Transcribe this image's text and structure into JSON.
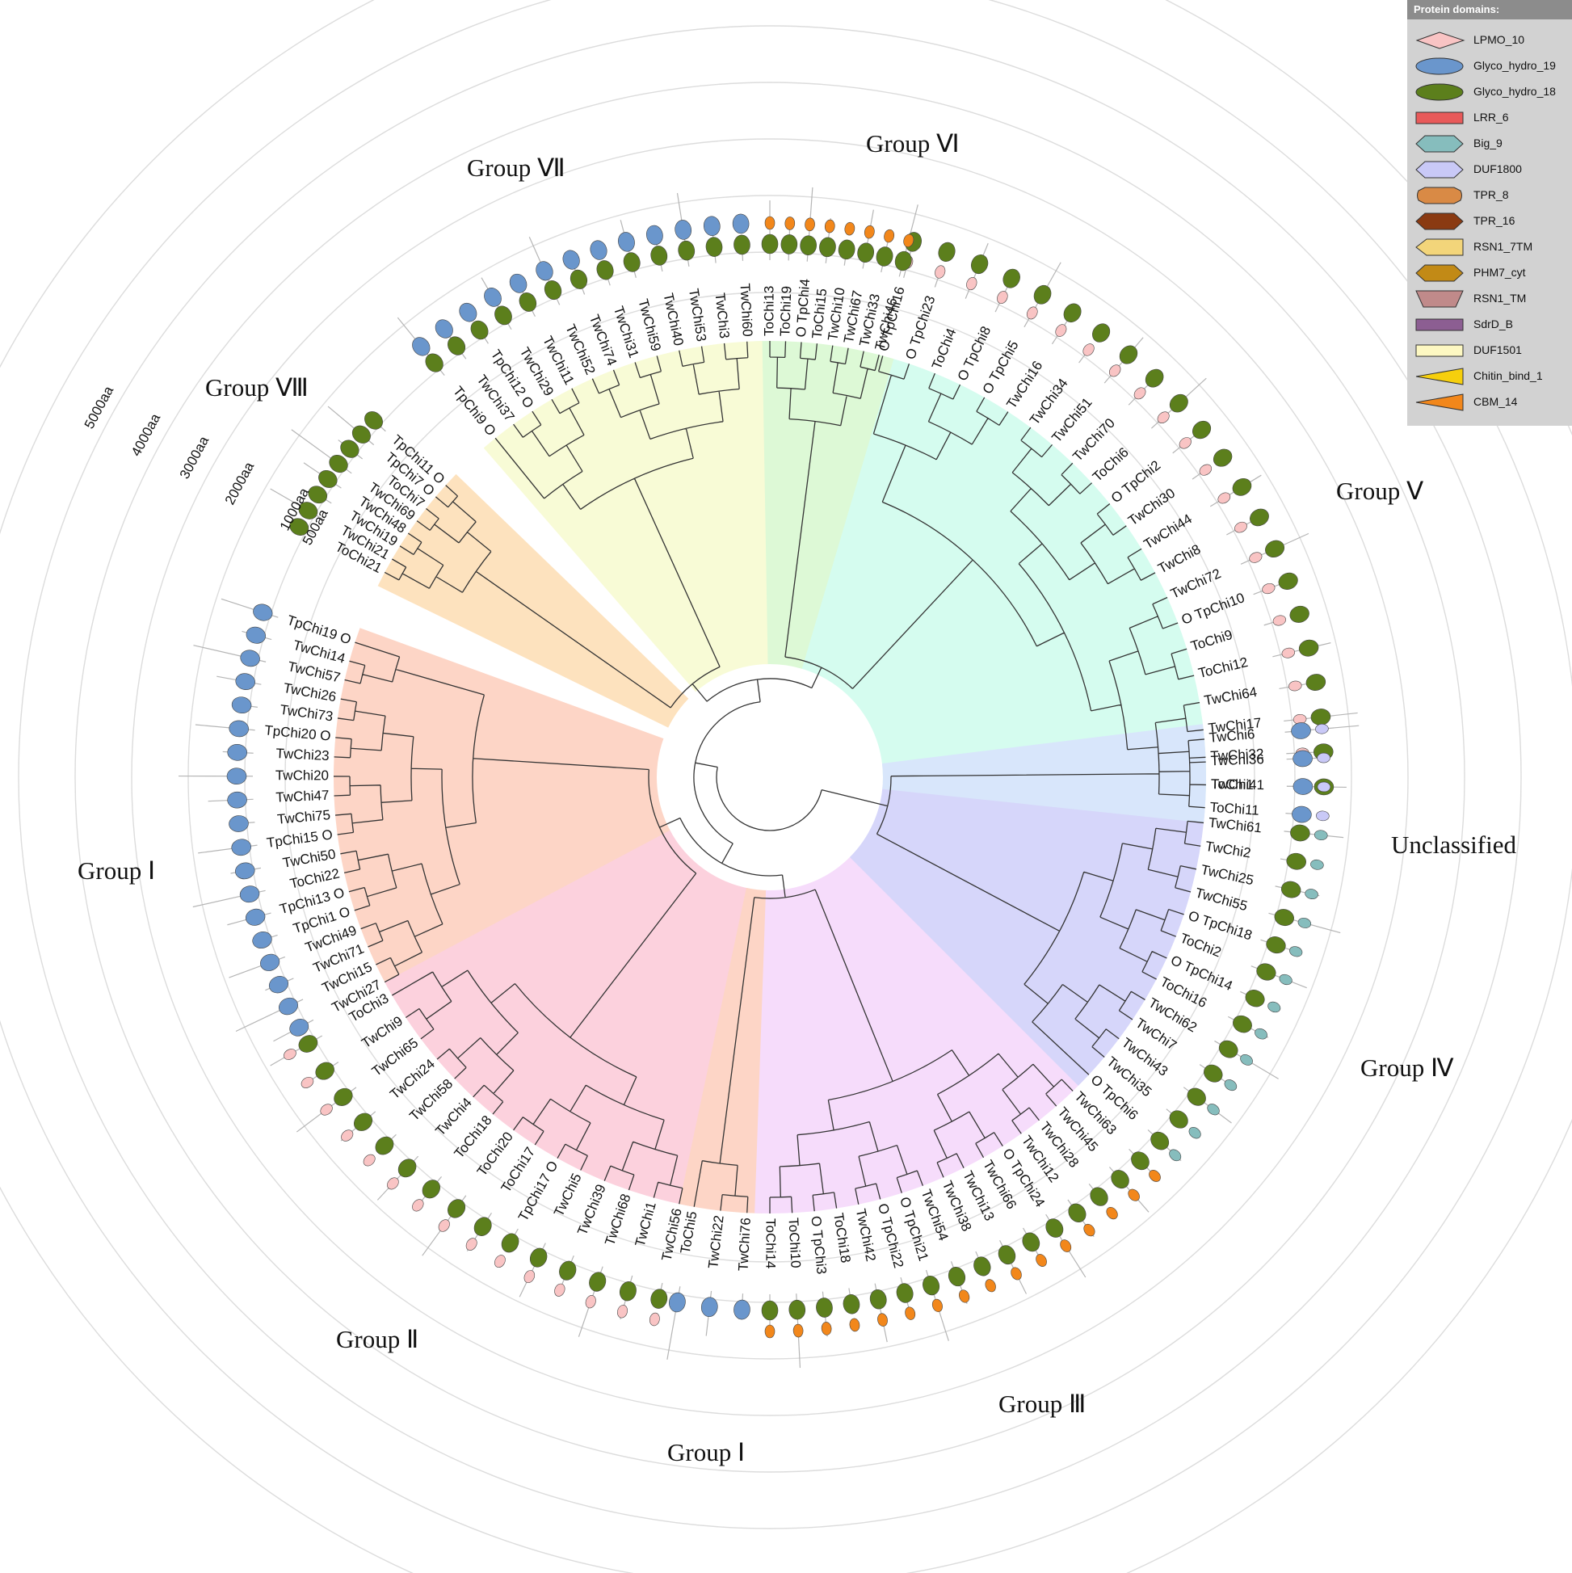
{
  "scale_labels": [
    "5000aa",
    "4000aa",
    "3000aa",
    "2000aa",
    "1000aa",
    "500aa"
  ],
  "groups": [
    {
      "id": "VII",
      "label": "Group Ⅶ",
      "color": "#f8fbd6"
    },
    {
      "id": "VI",
      "label": "Group Ⅵ",
      "color": "#ddf9d6"
    },
    {
      "id": "V",
      "label": "Group Ⅴ",
      "color": "#d5fcef"
    },
    {
      "id": "VIII",
      "label": "Group Ⅷ",
      "color": "#fde2be"
    },
    {
      "id": "I",
      "label": "Group Ⅰ",
      "color": "#fdd5c6"
    },
    {
      "id": "II",
      "label": "Group Ⅱ",
      "color": "#fcd1dd"
    },
    {
      "id": "Ib",
      "label": "Group Ⅰ",
      "color": "#fdd5c6"
    },
    {
      "id": "III",
      "label": "Group Ⅲ",
      "color": "#f6dcfb"
    },
    {
      "id": "IV",
      "label": "Group Ⅳ",
      "color": "#d6d6fa"
    },
    {
      "id": "U",
      "label": "Unclassified",
      "color": "#d8e6fb"
    }
  ],
  "leaves": [
    {
      "label": "TwChi41",
      "group": "V"
    },
    {
      "label": "TwChi32",
      "group": "V"
    },
    {
      "label": "TwChi17",
      "group": "V"
    },
    {
      "label": "TwChi64",
      "group": "V"
    },
    {
      "label": "ToChi12",
      "group": "V"
    },
    {
      "label": "ToChi9",
      "group": "V"
    },
    {
      "label": "O TpChi10",
      "group": "V"
    },
    {
      "label": "TwChi72",
      "group": "V"
    },
    {
      "label": "TwChi8",
      "group": "V"
    },
    {
      "label": "TwChi44",
      "group": "V"
    },
    {
      "label": "TwChi30",
      "group": "V"
    },
    {
      "label": "O TpChi2",
      "group": "V"
    },
    {
      "label": "ToChi6",
      "group": "V"
    },
    {
      "label": "TwChi70",
      "group": "V"
    },
    {
      "label": "TwChi51",
      "group": "V"
    },
    {
      "label": "TwChi34",
      "group": "V"
    },
    {
      "label": "TwChi16",
      "group": "V"
    },
    {
      "label": "O TpChi5",
      "group": "V"
    },
    {
      "label": "O TpChi8",
      "group": "V"
    },
    {
      "label": "ToChi4",
      "group": "V"
    },
    {
      "label": "O TpChi23",
      "group": "V"
    },
    {
      "label": "O TpChi16",
      "group": "V"
    },
    {
      "label": "TwChi46",
      "group": "VI"
    },
    {
      "label": "TwChi33",
      "group": "VI"
    },
    {
      "label": "TwChi67",
      "group": "VI"
    },
    {
      "label": "TwChi10",
      "group": "VI"
    },
    {
      "label": "ToChi15",
      "group": "VI"
    },
    {
      "label": "O TpChi4",
      "group": "VI"
    },
    {
      "label": "ToChi19",
      "group": "VI"
    },
    {
      "label": "ToChi13",
      "group": "VI"
    },
    {
      "label": "TwChi60",
      "group": "VII"
    },
    {
      "label": "TwChi3",
      "group": "VII"
    },
    {
      "label": "TwChi53",
      "group": "VII"
    },
    {
      "label": "TwChi40",
      "group": "VII"
    },
    {
      "label": "TwChi59",
      "group": "VII"
    },
    {
      "label": "TwChi31",
      "group": "VII"
    },
    {
      "label": "TwChi74",
      "group": "VII"
    },
    {
      "label": "TwChi52",
      "group": "VII"
    },
    {
      "label": "TwChi11",
      "group": "VII"
    },
    {
      "label": "TwChi29",
      "group": "VII"
    },
    {
      "label": "TpChi12 O",
      "group": "VII"
    },
    {
      "label": "TwChi37",
      "group": "VII"
    },
    {
      "label": "TpChi9 O",
      "group": "VII"
    },
    {
      "label": "ToChi21",
      "group": "VIII"
    },
    {
      "label": "TwChi21",
      "group": "VIII"
    },
    {
      "label": "TwChi19",
      "group": "VIII"
    },
    {
      "label": "TwChi48",
      "group": "VIII"
    },
    {
      "label": "TwChi69",
      "group": "VIII"
    },
    {
      "label": "ToChi7",
      "group": "VIII"
    },
    {
      "label": "TpChi7 O",
      "group": "VIII"
    },
    {
      "label": "TpChi11 O",
      "group": "VIII"
    },
    {
      "label": "TwChi27",
      "group": "I"
    },
    {
      "label": "TwChi15",
      "group": "I"
    },
    {
      "label": "TwChi71",
      "group": "I"
    },
    {
      "label": "TwChi49",
      "group": "I"
    },
    {
      "label": "TpChi1 O",
      "group": "I"
    },
    {
      "label": "TpChi13 O",
      "group": "I"
    },
    {
      "label": "ToChi22",
      "group": "I"
    },
    {
      "label": "TwChi50",
      "group": "I"
    },
    {
      "label": "TpChi15 O",
      "group": "I"
    },
    {
      "label": "TwChi75",
      "group": "I"
    },
    {
      "label": "TwChi47",
      "group": "I"
    },
    {
      "label": "TwChi20",
      "group": "I"
    },
    {
      "label": "TwChi23",
      "group": "I"
    },
    {
      "label": "TpChi20 O",
      "group": "I"
    },
    {
      "label": "TwChi73",
      "group": "I"
    },
    {
      "label": "TwChi26",
      "group": "I"
    },
    {
      "label": "TwChi57",
      "group": "I"
    },
    {
      "label": "TwChi14",
      "group": "I"
    },
    {
      "label": "TpChi19 O",
      "group": "I"
    },
    {
      "label": "TwChi56",
      "group": "II"
    },
    {
      "label": "TwChi1",
      "group": "II"
    },
    {
      "label": "TwChi68",
      "group": "II"
    },
    {
      "label": "TwChi39",
      "group": "II"
    },
    {
      "label": "TwChi5",
      "group": "II"
    },
    {
      "label": "TpChi17 O",
      "group": "II"
    },
    {
      "label": "ToChi17",
      "group": "II"
    },
    {
      "label": "ToChi20",
      "group": "II"
    },
    {
      "label": "ToChi18",
      "group": "II"
    },
    {
      "label": "TwChi4",
      "group": "II"
    },
    {
      "label": "TwChi58",
      "group": "II"
    },
    {
      "label": "TwChi24",
      "group": "II"
    },
    {
      "label": "TwChi65",
      "group": "II"
    },
    {
      "label": "TwChi9",
      "group": "II"
    },
    {
      "label": "ToChi3",
      "group": "II"
    },
    {
      "label": "TwChi76",
      "group": "Ib"
    },
    {
      "label": "TwChi22",
      "group": "Ib"
    },
    {
      "label": "ToChi5",
      "group": "Ib"
    },
    {
      "label": "TwChi63",
      "group": "III"
    },
    {
      "label": "TwChi45",
      "group": "III"
    },
    {
      "label": "TwChi28",
      "group": "III"
    },
    {
      "label": "TwChi12",
      "group": "III"
    },
    {
      "label": "O TpChi24",
      "group": "III"
    },
    {
      "label": "TwChi66",
      "group": "III"
    },
    {
      "label": "TwChi13",
      "group": "III"
    },
    {
      "label": "TwChi38",
      "group": "III"
    },
    {
      "label": "TwChi54",
      "group": "III"
    },
    {
      "label": "O TpChi21",
      "group": "III"
    },
    {
      "label": "O TpChi22",
      "group": "III"
    },
    {
      "label": "TwChi42",
      "group": "III"
    },
    {
      "label": "ToChi18",
      "group": "III"
    },
    {
      "label": "O TpChi3",
      "group": "III"
    },
    {
      "label": "ToChi10",
      "group": "III"
    },
    {
      "label": "ToChi14",
      "group": "III"
    },
    {
      "label": "TwChi61",
      "group": "IV"
    },
    {
      "label": "TwChi2",
      "group": "IV"
    },
    {
      "label": "TwChi25",
      "group": "IV"
    },
    {
      "label": "TwChi55",
      "group": "IV"
    },
    {
      "label": "O TpChi18",
      "group": "IV"
    },
    {
      "label": "ToChi2",
      "group": "IV"
    },
    {
      "label": "O TpChi14",
      "group": "IV"
    },
    {
      "label": "ToChi16",
      "group": "IV"
    },
    {
      "label": "TwChi62",
      "group": "IV"
    },
    {
      "label": "TwChi7",
      "group": "IV"
    },
    {
      "label": "TwChi43",
      "group": "IV"
    },
    {
      "label": "TwChi35",
      "group": "IV"
    },
    {
      "label": "O TpChi6",
      "group": "IV"
    },
    {
      "label": "TwChi6",
      "group": "U"
    },
    {
      "label": "TwChi36",
      "group": "U"
    },
    {
      "label": "ToChi1",
      "group": "U"
    },
    {
      "label": "ToChi11",
      "group": "U"
    }
  ],
  "legend": {
    "title": "Protein domains:",
    "items": [
      {
        "label": "LPMO_10",
        "shape": "diamond",
        "color": "#f9c4c4"
      },
      {
        "label": "Glyco_hydro_19",
        "shape": "ellipse",
        "color": "#6a96cc"
      },
      {
        "label": "Glyco_hydro_18",
        "shape": "ellipse",
        "color": "#5c7f1c"
      },
      {
        "label": "LRR_6",
        "shape": "rect",
        "color": "#e85a5a"
      },
      {
        "label": "Big_9",
        "shape": "hexagon",
        "color": "#86bdbd"
      },
      {
        "label": "DUF1800",
        "shape": "hexagon",
        "color": "#c9c9f7"
      },
      {
        "label": "TPR_8",
        "shape": "hexround",
        "color": "#d98a45"
      },
      {
        "label": "TPR_16",
        "shape": "hexagon",
        "color": "#8a3a12"
      },
      {
        "label": "RSN1_7TM",
        "shape": "pentagon",
        "color": "#f3d57a"
      },
      {
        "label": "PHM7_cyt",
        "shape": "hexagon",
        "color": "#c28a16"
      },
      {
        "label": "RSN1_TM",
        "shape": "trapezoid",
        "color": "#c08a8a"
      },
      {
        "label": "SdrD_B",
        "shape": "rect",
        "color": "#8c5e92"
      },
      {
        "label": "DUF1501",
        "shape": "rect",
        "color": "#fdf8c2"
      },
      {
        "label": "Chitin_bind_1",
        "shape": "triangle",
        "color": "#f6cf0d"
      },
      {
        "label": "CBM_14",
        "shape": "triangle",
        "color": "#f2871b"
      }
    ]
  }
}
